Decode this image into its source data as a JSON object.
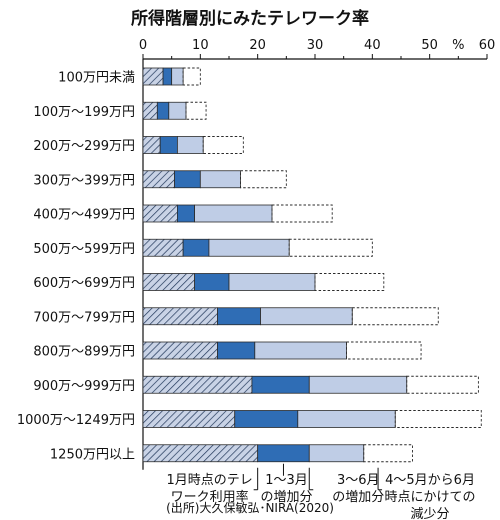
{
  "chart_data": {
    "type": "bar",
    "orientation": "horizontal",
    "stacked": true,
    "title": "所得階層別にみたテレワーク率",
    "unit": "%",
    "xlim": [
      0,
      60
    ],
    "xticks": [
      0,
      10,
      20,
      30,
      40,
      50,
      60
    ],
    "grid": false,
    "categories": [
      "100万円未満",
      "100万〜199万円",
      "200万〜299万円",
      "300万〜399万円",
      "400万〜499万円",
      "500万〜599万円",
      "600万〜699万円",
      "700万〜799万円",
      "800万〜899万円",
      "900万〜999万円",
      "1000万〜1249万円",
      "1250万円以上"
    ],
    "series": [
      {
        "name": "1月時点のテレワーク利用率",
        "pattern": "hatched",
        "values": [
          3.5,
          2.5,
          3,
          5.5,
          6,
          7,
          9,
          13,
          13,
          19,
          16,
          20
        ]
      },
      {
        "name": "1〜3月の増加分",
        "pattern": "solid-dark",
        "values": [
          1.5,
          2,
          3,
          4.5,
          3,
          4.5,
          6,
          7.5,
          6.5,
          10,
          11,
          9
        ]
      },
      {
        "name": "3〜6月の増加分",
        "pattern": "solid-light",
        "values": [
          2,
          3,
          4.5,
          7,
          13.5,
          14,
          15,
          16,
          16,
          17,
          17,
          9.5
        ]
      },
      {
        "name": "4〜5月から6月時点にかけての減少分",
        "pattern": "dashed-outline",
        "values": [
          3,
          3.5,
          7,
          8,
          10.5,
          14.5,
          12,
          15,
          13,
          12.5,
          15,
          8.5
        ]
      }
    ],
    "legend_labels": [
      [
        "1月時点のテレ",
        "ワーク利用率"
      ],
      [
        "1〜3月",
        "の増加分"
      ],
      [
        "3〜6月",
        "の増加分"
      ],
      [
        "4〜5月から6月",
        "時点にかけての",
        "減少分"
      ]
    ],
    "source": "(出所)大久保敏弘･NIRA(2020)",
    "colors": {
      "hatch_bg": "#c9d3e6",
      "hatch_line": "#1f3558",
      "dark": "#2f6db5",
      "light": "#bfcde6",
      "outline": "#2b2b2b",
      "axis": "#111111"
    }
  }
}
